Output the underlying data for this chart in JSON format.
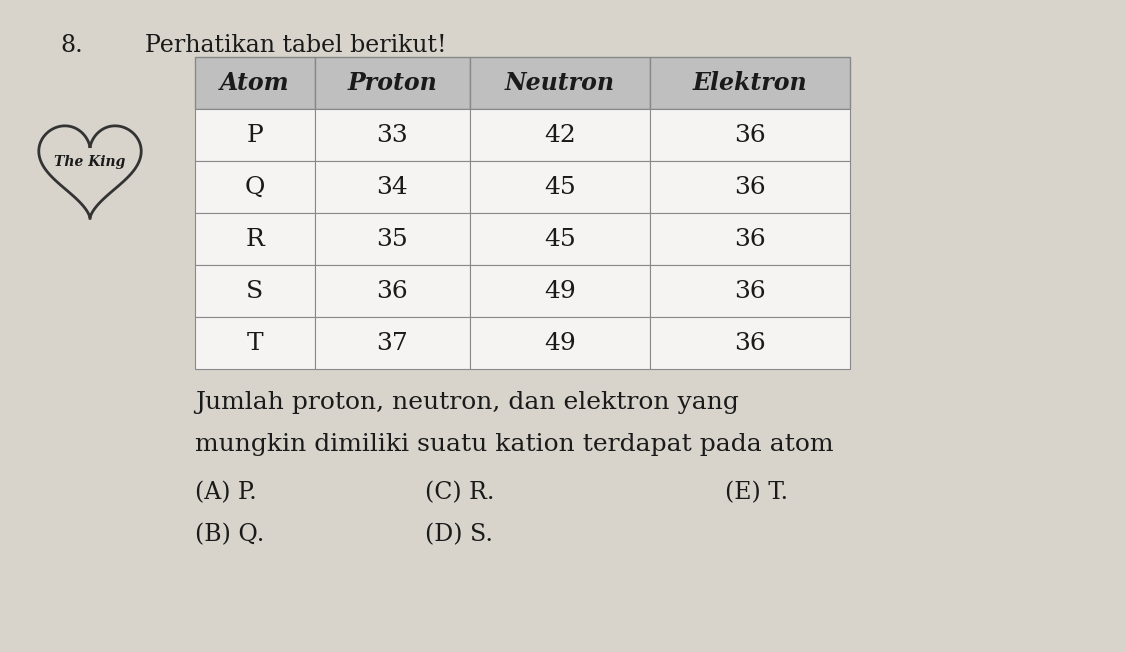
{
  "question_number": "8.",
  "question_text": "Perhatikan tabel berikut!",
  "headers": [
    "Atom",
    "Proton",
    "Neutron",
    "Elektron"
  ],
  "rows": [
    [
      "P",
      "33",
      "42",
      "36"
    ],
    [
      "Q",
      "34",
      "45",
      "36"
    ],
    [
      "R",
      "35",
      "45",
      "36"
    ],
    [
      "S",
      "36",
      "49",
      "36"
    ],
    [
      "T",
      "37",
      "49",
      "36"
    ]
  ],
  "para_line1": "Jumlah proton, neutron, dan elektron yang",
  "para_line2": "mungkin dimiliki suatu kation terdapat pada atom",
  "options_row1": [
    "(A) P.",
    "(C) R.",
    "(E) T."
  ],
  "options_row2": [
    "(B) Q.",
    "(D) S.",
    ""
  ],
  "header_bg": "#c0bfbf",
  "cell_bg": "#f5f4f2",
  "bg_color": "#d8d4cc",
  "text_color": "#1a1a1a",
  "border_color": "#888888",
  "font_size_header": 17,
  "font_size_body": 18,
  "font_size_question": 17,
  "font_size_options": 17,
  "font_size_para": 18,
  "logo_text": "The King"
}
